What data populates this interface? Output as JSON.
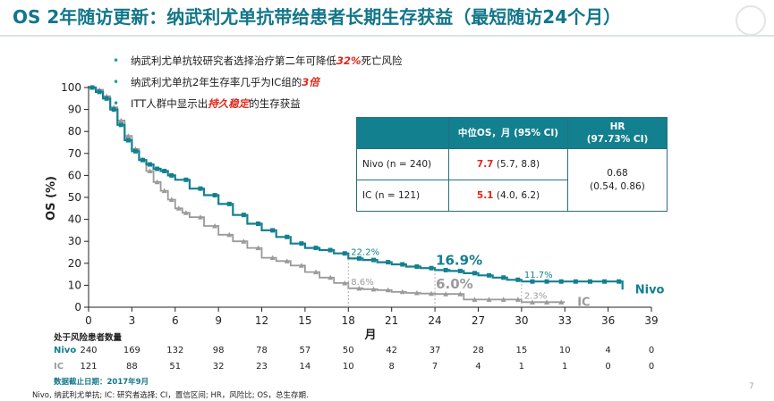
{
  "title": "OS 2年随访更新：纳武利尤单抗带给患者长期生存获益（最短随访24个月）",
  "bullets": [
    {
      "pre": "纳武利尤单抗较研究者选择治疗第二年可降低",
      "hl": "32%",
      "post": "死亡风险"
    },
    {
      "pre": "纳武利尤单抗2年生存率几乎为IC组的",
      "hl": "3倍",
      "post": ""
    },
    {
      "pre": "ITT人群中显示出",
      "hl": "持久稳定",
      "post": "的生存获益"
    }
  ],
  "hr_table": {
    "header_os": "中位OS，月 (95% CI)",
    "header_hr": "HR\n(97.73% CI)",
    "rows": [
      {
        "group": "Nivo (n = 240)",
        "median": "7.7",
        "ci": "(5.7, 8.8)"
      },
      {
        "group": "IC (n = 121)",
        "median": "5.1",
        "ci": "(4.0, 6.2)"
      }
    ],
    "hr": "0.68",
    "hr_ci": "(0.54, 0.86)"
  },
  "risk_table": {
    "title": "处于风险患者数量",
    "nivo_label": "Nivo",
    "ic_label": "IC",
    "nivo": [
      "240",
      "169",
      "132",
      "98",
      "78",
      "57",
      "50",
      "42",
      "37",
      "28",
      "15",
      "10",
      "4",
      "0"
    ],
    "ic": [
      "121",
      "88",
      "51",
      "32",
      "23",
      "14",
      "10",
      "8",
      "7",
      "4",
      "1",
      "1",
      "0",
      "0"
    ]
  },
  "cutoff": "数据截止日期：2017年9月",
  "footnote": "Nivo, 纳武利尤单抗; IC: 研究者选择; CI，置信区间; HR，风险比; OS，总生存期.",
  "page_number": "7",
  "colors": {
    "nivo": "#12808f",
    "ic": "#9a9a9a",
    "accent": "#e0271c",
    "title": "#12768a"
  },
  "chart_data": {
    "type": "line",
    "title": "",
    "xlabel": "月",
    "ylabel": "OS (%)",
    "xlim": [
      0,
      39
    ],
    "ylim": [
      0,
      100
    ],
    "xticks": [
      "0",
      "3",
      "6",
      "9",
      "12",
      "15",
      "18",
      "21",
      "24",
      "27",
      "30",
      "33",
      "36",
      "39"
    ],
    "yticks": [
      "0",
      "10",
      "20",
      "30",
      "40",
      "50",
      "60",
      "70",
      "80",
      "90",
      "100"
    ],
    "grid": false,
    "series": [
      {
        "name": "Nivo",
        "x": [
          0,
          0.5,
          1,
          1.5,
          2,
          2.5,
          3,
          3.5,
          4,
          4.5,
          5,
          5.5,
          6,
          7,
          8,
          9,
          10,
          11,
          12,
          13,
          14,
          15,
          16,
          17,
          18,
          19,
          20,
          21,
          22,
          23,
          24,
          25,
          26,
          27,
          28,
          29,
          30,
          31,
          32,
          33,
          34,
          35,
          36,
          37
        ],
        "y": [
          100,
          98,
          95,
          90,
          83,
          76,
          71,
          67,
          65,
          63,
          62,
          60,
          58,
          54,
          51,
          47,
          42,
          38,
          35,
          32,
          29,
          27,
          26,
          24.5,
          22.2,
          21.5,
          20.5,
          19.5,
          18.5,
          17.8,
          16.9,
          16.5,
          15.5,
          14.5,
          13.5,
          12.5,
          11.7,
          11.7,
          11.7,
          11.7,
          11.7,
          11.7,
          11.7,
          8
        ],
        "labels": [
          {
            "x": 18,
            "text": "22.2%"
          },
          {
            "x": 24,
            "text": "16.9%"
          },
          {
            "x": 30,
            "text": "11.7%"
          }
        ]
      },
      {
        "name": "IC",
        "x": [
          0,
          0.5,
          1,
          1.5,
          2,
          2.5,
          3,
          3.5,
          4,
          4.5,
          5,
          5.5,
          6,
          6.5,
          7,
          8,
          9,
          10,
          11,
          12,
          13,
          14,
          15,
          16,
          17,
          18,
          19,
          20,
          21,
          22,
          23,
          24,
          25,
          26,
          27,
          28,
          29,
          30,
          31,
          32,
          33
        ],
        "y": [
          100,
          99,
          96,
          91,
          85,
          78,
          72,
          67,
          62,
          57,
          53,
          49,
          45,
          43,
          41,
          37,
          33,
          30,
          27,
          22.5,
          21,
          19,
          16,
          13.5,
          11,
          8.6,
          8.2,
          7.8,
          7,
          6.5,
          6.2,
          6.0,
          6.0,
          3.5,
          3.5,
          3.5,
          3.5,
          2.3,
          2.3,
          2.3,
          2.3
        ],
        "labels": [
          {
            "x": 18,
            "text": "8.6%"
          },
          {
            "x": 24,
            "text": "6.0%"
          },
          {
            "x": 30,
            "text": "2.3%"
          }
        ]
      }
    ]
  }
}
